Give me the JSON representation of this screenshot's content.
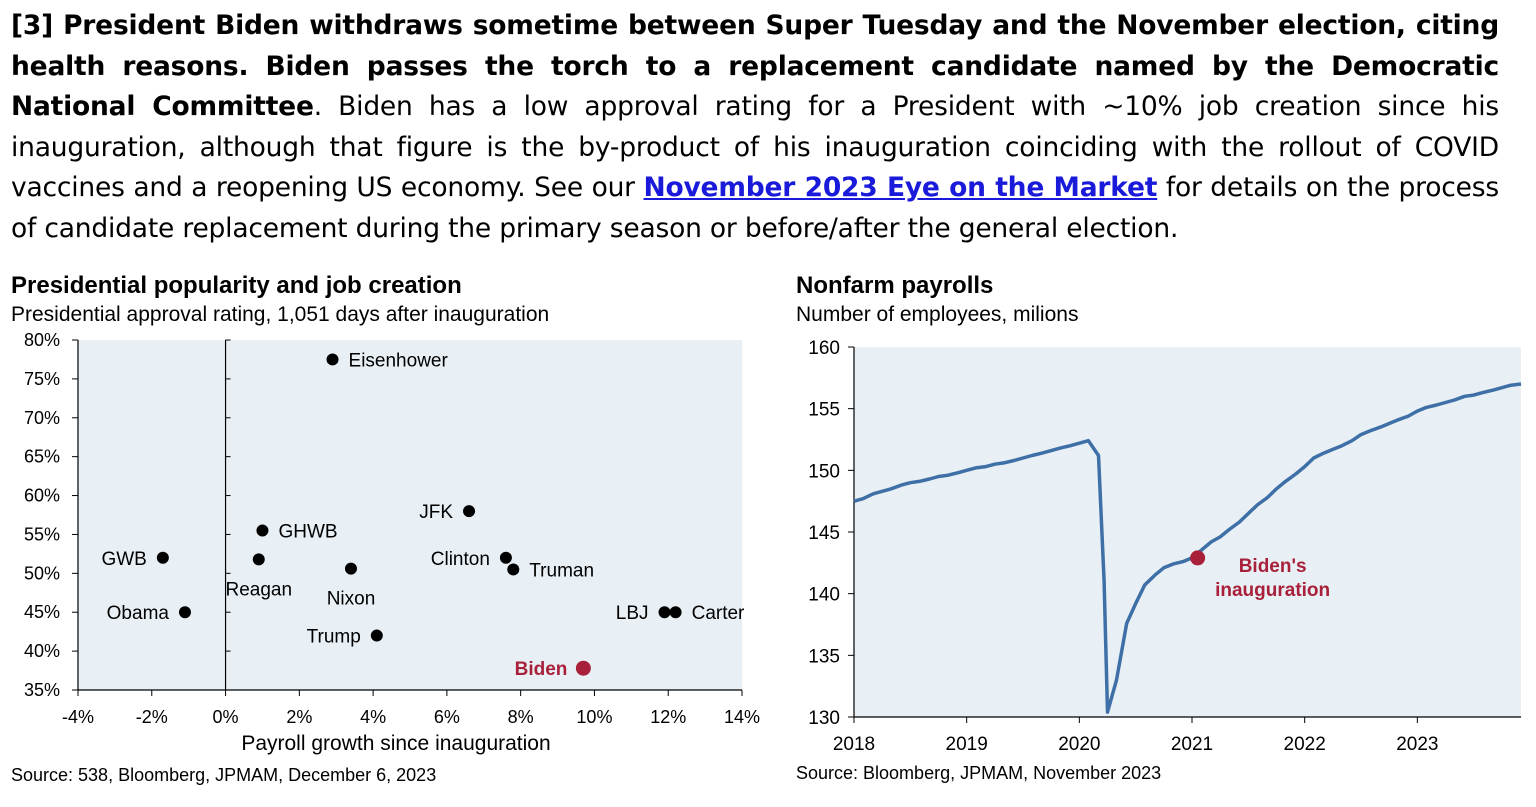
{
  "paragraph": {
    "bold_text": "[3] President Biden withdraws sometime between Super Tuesday and the November election, citing health reasons.  Biden passes the torch to a replacement candidate named by the Democratic National Committee",
    "period": ". ",
    "body_text": "Biden has a low approval rating for a President with ~10% job creation since his inauguration, although that figure is the by-product of his inauguration coinciding with the rollout of COVID vaccines and a reopening US economy.  See our ",
    "link_text": "November 2023 Eye on the Market",
    "tail_text": " for details on the process of candidate replacement during the primary season or before/after the general election."
  },
  "left_chart": {
    "title": "Presidential popularity and job creation",
    "subtitle": "Presidential approval rating, 1,051 days after inauguration",
    "source": "Source: 538, Bloomberg, JPMAM, December 6, 2023"
  },
  "right_chart": {
    "title": "Nonfarm payrolls",
    "subtitle": "Number of employees, milions",
    "source": "Source: Bloomberg, JPMAM, November 2023"
  },
  "colors": {
    "plot_bg": "#e9f0f5",
    "highlight": "#a8203a",
    "line": "#3e6fa6",
    "point": "#000000"
  },
  "chart_data": [
    {
      "type": "scatter",
      "title": "Presidential popularity and job creation",
      "subtitle": "Presidential approval rating, 1,051 days after inauguration",
      "xlabel": "Payroll growth since inauguration",
      "ylabel": "",
      "xlim": [
        -4,
        14
      ],
      "ylim": [
        35,
        80
      ],
      "x_ticks": [
        -4,
        -2,
        0,
        2,
        4,
        6,
        8,
        10,
        12,
        14
      ],
      "y_ticks": [
        35,
        40,
        45,
        50,
        55,
        60,
        65,
        70,
        75,
        80
      ],
      "x_tick_labels": [
        "-4%",
        "-2%",
        "0%",
        "2%",
        "4%",
        "6%",
        "8%",
        "10%",
        "12%",
        "14%"
      ],
      "y_tick_labels": [
        "35%",
        "40%",
        "45%",
        "50%",
        "55%",
        "60%",
        "65%",
        "70%",
        "75%",
        "80%"
      ],
      "points": [
        {
          "label": "Eisenhower",
          "x": 2.9,
          "y": 77.5,
          "label_pos": "right"
        },
        {
          "label": "JFK",
          "x": 6.6,
          "y": 58.0,
          "label_pos": "left"
        },
        {
          "label": "GHWB",
          "x": 1.0,
          "y": 55.5,
          "label_pos": "right"
        },
        {
          "label": "GWB",
          "x": -1.7,
          "y": 52.0,
          "label_pos": "left"
        },
        {
          "label": "Reagan",
          "x": 0.9,
          "y": 51.8,
          "label_pos": "below"
        },
        {
          "label": "Clinton",
          "x": 7.6,
          "y": 52.0,
          "label_pos": "left"
        },
        {
          "label": "Truman",
          "x": 7.8,
          "y": 50.5,
          "label_pos": "right-below"
        },
        {
          "label": "Nixon",
          "x": 3.4,
          "y": 50.6,
          "label_pos": "below"
        },
        {
          "label": "Obama",
          "x": -1.1,
          "y": 45.0,
          "label_pos": "left"
        },
        {
          "label": "LBJ",
          "x": 11.9,
          "y": 45.0,
          "label_pos": "left"
        },
        {
          "label": "Carter",
          "x": 12.2,
          "y": 45.0,
          "label_pos": "right"
        },
        {
          "label": "Trump",
          "x": 4.1,
          "y": 42.0,
          "label_pos": "left"
        },
        {
          "label": "Biden",
          "x": 9.7,
          "y": 37.8,
          "label_pos": "left",
          "highlight": true
        }
      ]
    },
    {
      "type": "line",
      "title": "Nonfarm payrolls",
      "subtitle": "Number of employees, milions",
      "xlabel": "",
      "ylabel": "",
      "xlim": [
        2018.0,
        2023.92
      ],
      "ylim": [
        130,
        160
      ],
      "x_ticks": [
        2018,
        2019,
        2020,
        2021,
        2022,
        2023
      ],
      "y_ticks": [
        130,
        135,
        140,
        145,
        150,
        155,
        160
      ],
      "annotation": {
        "label": "Biden's inauguration",
        "x": 2021.05,
        "y": 142.9
      },
      "series": [
        {
          "x": [
            2018.0,
            2018.08,
            2018.17,
            2018.25,
            2018.33,
            2018.42,
            2018.5,
            2018.58,
            2018.67,
            2018.75,
            2018.83,
            2018.92,
            2019.0,
            2019.08,
            2019.17,
            2019.25,
            2019.33,
            2019.42,
            2019.5,
            2019.58,
            2019.67,
            2019.75,
            2019.83,
            2019.92,
            2020.0,
            2020.08,
            2020.17,
            2020.22,
            2020.25,
            2020.33,
            2020.42,
            2020.5,
            2020.58,
            2020.67,
            2020.75,
            2020.83,
            2020.92,
            2021.0,
            2021.08,
            2021.17,
            2021.25,
            2021.33,
            2021.42,
            2021.5,
            2021.58,
            2021.67,
            2021.75,
            2021.83,
            2021.92,
            2022.0,
            2022.08,
            2022.17,
            2022.25,
            2022.33,
            2022.42,
            2022.5,
            2022.58,
            2022.67,
            2022.75,
            2022.83,
            2022.92,
            2023.0,
            2023.08,
            2023.17,
            2023.25,
            2023.33,
            2023.42,
            2023.5,
            2023.58,
            2023.67,
            2023.75,
            2023.83,
            2023.92
          ],
          "values": [
            147.5,
            147.7,
            148.1,
            148.3,
            148.5,
            148.8,
            149.0,
            149.1,
            149.3,
            149.5,
            149.6,
            149.8,
            150.0,
            150.2,
            150.3,
            150.5,
            150.6,
            150.8,
            151.0,
            151.2,
            151.4,
            151.6,
            151.8,
            152.0,
            152.2,
            152.4,
            151.2,
            141.0,
            130.4,
            133.0,
            137.6,
            139.2,
            140.7,
            141.5,
            142.1,
            142.4,
            142.6,
            142.9,
            143.5,
            144.2,
            144.6,
            145.2,
            145.8,
            146.5,
            147.2,
            147.8,
            148.5,
            149.1,
            149.7,
            150.3,
            151.0,
            151.4,
            151.7,
            152.0,
            152.4,
            152.9,
            153.2,
            153.5,
            153.8,
            154.1,
            154.4,
            154.8,
            155.1,
            155.3,
            155.5,
            155.7,
            156.0,
            156.1,
            156.3,
            156.5,
            156.7,
            156.9,
            157.0
          ]
        }
      ]
    }
  ]
}
